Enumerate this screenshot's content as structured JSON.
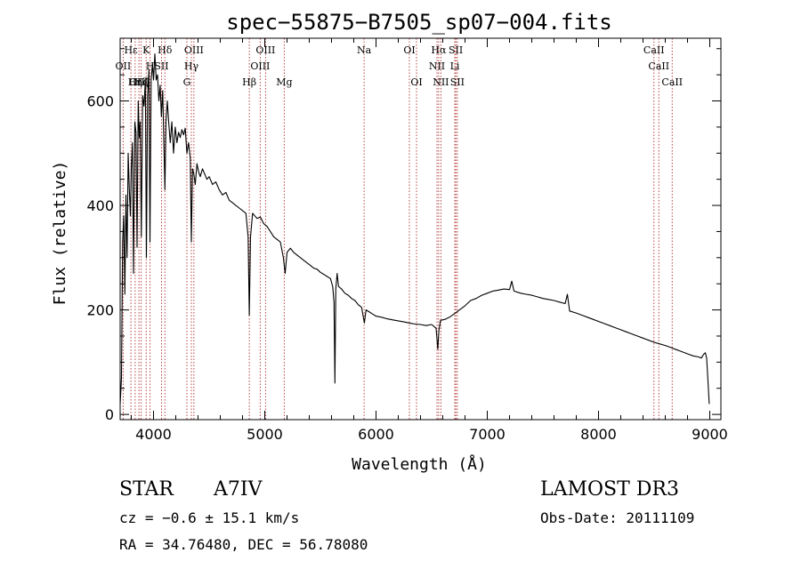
{
  "chart_data": {
    "type": "line",
    "title": "spec−55875−B7505_sp07−004.fits",
    "xlabel": "Wavelength (Å)",
    "ylabel": "Flux (relative)",
    "xlim": [
      3700,
      9100
    ],
    "ylim": [
      -10,
      720
    ],
    "x_ticks": [
      4000,
      5000,
      6000,
      7000,
      8000,
      9000
    ],
    "x_tick_labels": [
      "4000",
      "5000",
      "6000",
      "7000",
      "8000",
      "9000"
    ],
    "y_ticks": [
      0,
      200,
      400,
      600
    ],
    "y_tick_labels": [
      "0",
      "200",
      "400",
      "600"
    ],
    "line_color": "#000000",
    "marker_color": "#b03030",
    "series": [
      {
        "name": "flux",
        "points": [
          [
            3700,
            20
          ],
          [
            3712,
            70
          ],
          [
            3722,
            330
          ],
          [
            3732,
            380
          ],
          [
            3742,
            230
          ],
          [
            3752,
            420
          ],
          [
            3762,
            300
          ],
          [
            3772,
            500
          ],
          [
            3782,
            430
          ],
          [
            3792,
            380
          ],
          [
            3800,
            470
          ],
          [
            3810,
            520
          ],
          [
            3820,
            270
          ],
          [
            3832,
            560
          ],
          [
            3842,
            540
          ],
          [
            3852,
            320
          ],
          [
            3862,
            600
          ],
          [
            3872,
            530
          ],
          [
            3880,
            560
          ],
          [
            3890,
            340
          ],
          [
            3902,
            610
          ],
          [
            3914,
            590
          ],
          [
            3926,
            640
          ],
          [
            3936,
            300
          ],
          [
            3946,
            610
          ],
          [
            3958,
            660
          ],
          [
            3968,
            330
          ],
          [
            3978,
            640
          ],
          [
            3990,
            670
          ],
          [
            4000,
            640
          ],
          [
            4012,
            690
          ],
          [
            4024,
            640
          ],
          [
            4036,
            650
          ],
          [
            4048,
            600
          ],
          [
            4060,
            630
          ],
          [
            4070,
            570
          ],
          [
            4082,
            620
          ],
          [
            4092,
            530
          ],
          [
            4102,
            430
          ],
          [
            4112,
            560
          ],
          [
            4124,
            600
          ],
          [
            4136,
            560
          ],
          [
            4150,
            520
          ],
          [
            4165,
            560
          ],
          [
            4180,
            500
          ],
          [
            4195,
            550
          ],
          [
            4210,
            520
          ],
          [
            4225,
            540
          ],
          [
            4240,
            530
          ],
          [
            4255,
            545
          ],
          [
            4270,
            535
          ],
          [
            4285,
            548
          ],
          [
            4300,
            500
          ],
          [
            4315,
            520
          ],
          [
            4330,
            490
          ],
          [
            4340,
            330
          ],
          [
            4350,
            470
          ],
          [
            4362,
            460
          ],
          [
            4375,
            440
          ],
          [
            4390,
            480
          ],
          [
            4405,
            465
          ],
          [
            4420,
            455
          ],
          [
            4440,
            470
          ],
          [
            4460,
            460
          ],
          [
            4480,
            450
          ],
          [
            4500,
            455
          ],
          [
            4530,
            440
          ],
          [
            4560,
            445
          ],
          [
            4590,
            430
          ],
          [
            4620,
            420
          ],
          [
            4650,
            425
          ],
          [
            4680,
            410
          ],
          [
            4710,
            405
          ],
          [
            4740,
            400
          ],
          [
            4770,
            395
          ],
          [
            4800,
            390
          ],
          [
            4830,
            385
          ],
          [
            4850,
            340
          ],
          [
            4861,
            190
          ],
          [
            4872,
            340
          ],
          [
            4890,
            385
          ],
          [
            4910,
            380
          ],
          [
            4930,
            375
          ],
          [
            4960,
            378
          ],
          [
            4990,
            365
          ],
          [
            5020,
            360
          ],
          [
            5050,
            350
          ],
          [
            5080,
            340
          ],
          [
            5110,
            335
          ],
          [
            5140,
            330
          ],
          [
            5167,
            300
          ],
          [
            5183,
            270
          ],
          [
            5200,
            310
          ],
          [
            5230,
            318
          ],
          [
            5260,
            310
          ],
          [
            5290,
            305
          ],
          [
            5320,
            300
          ],
          [
            5350,
            295
          ],
          [
            5380,
            290
          ],
          [
            5410,
            285
          ],
          [
            5440,
            280
          ],
          [
            5470,
            278
          ],
          [
            5500,
            272
          ],
          [
            5530,
            268
          ],
          [
            5560,
            264
          ],
          [
            5590,
            260
          ],
          [
            5610,
            245
          ],
          [
            5622,
            215
          ],
          [
            5630,
            60
          ],
          [
            5638,
            240
          ],
          [
            5650,
            270
          ],
          [
            5662,
            245
          ],
          [
            5690,
            240
          ],
          [
            5720,
            232
          ],
          [
            5750,
            228
          ],
          [
            5780,
            222
          ],
          [
            5810,
            218
          ],
          [
            5840,
            210
          ],
          [
            5870,
            205
          ],
          [
            5895,
            175
          ],
          [
            5910,
            200
          ],
          [
            5940,
            196
          ],
          [
            5970,
            192
          ],
          [
            6000,
            188
          ],
          [
            6050,
            186
          ],
          [
            6100,
            183
          ],
          [
            6150,
            181
          ],
          [
            6200,
            179
          ],
          [
            6250,
            177
          ],
          [
            6300,
            175
          ],
          [
            6350,
            173
          ],
          [
            6400,
            172
          ],
          [
            6450,
            170
          ],
          [
            6500,
            172
          ],
          [
            6540,
            165
          ],
          [
            6555,
            125
          ],
          [
            6565,
            160
          ],
          [
            6580,
            180
          ],
          [
            6620,
            182
          ],
          [
            6660,
            186
          ],
          [
            6700,
            192
          ],
          [
            6750,
            200
          ],
          [
            6800,
            208
          ],
          [
            6850,
            218
          ],
          [
            6900,
            222
          ],
          [
            6950,
            228
          ],
          [
            7000,
            232
          ],
          [
            7050,
            236
          ],
          [
            7100,
            238
          ],
          [
            7150,
            240
          ],
          [
            7200,
            239
          ],
          [
            7220,
            255
          ],
          [
            7240,
            236
          ],
          [
            7300,
            232
          ],
          [
            7350,
            230
          ],
          [
            7400,
            228
          ],
          [
            7450,
            225
          ],
          [
            7500,
            222
          ],
          [
            7550,
            220
          ],
          [
            7600,
            218
          ],
          [
            7650,
            215
          ],
          [
            7700,
            212
          ],
          [
            7720,
            230
          ],
          [
            7740,
            198
          ],
          [
            7800,
            194
          ],
          [
            7850,
            190
          ],
          [
            7900,
            186
          ],
          [
            7950,
            182
          ],
          [
            8000,
            178
          ],
          [
            8050,
            174
          ],
          [
            8100,
            170
          ],
          [
            8150,
            166
          ],
          [
            8200,
            162
          ],
          [
            8250,
            158
          ],
          [
            8300,
            154
          ],
          [
            8350,
            150
          ],
          [
            8400,
            146
          ],
          [
            8450,
            142
          ],
          [
            8500,
            138
          ],
          [
            8550,
            135
          ],
          [
            8600,
            132
          ],
          [
            8650,
            128
          ],
          [
            8700,
            124
          ],
          [
            8750,
            120
          ],
          [
            8800,
            116
          ],
          [
            8850,
            112
          ],
          [
            8900,
            110
          ],
          [
            8925,
            108
          ],
          [
            8945,
            115
          ],
          [
            8960,
            118
          ],
          [
            8972,
            108
          ],
          [
            8985,
            60
          ],
          [
            8995,
            20
          ]
        ]
      }
    ],
    "line_markers": [
      {
        "label": "Hε",
        "wavelength": 3797,
        "row": 0,
        "dx": 0
      },
      {
        "label": "K",
        "wavelength": 3934,
        "row": 0,
        "dx": 0
      },
      {
        "label": "Hδ",
        "wavelength": 4102,
        "row": 0,
        "dx": 0
      },
      {
        "label": "OIII",
        "wavelength": 4363,
        "row": 0,
        "dx": 0
      },
      {
        "label": "OIII",
        "wavelength": 5007,
        "row": 0,
        "dx": 0
      },
      {
        "label": "OI",
        "wavelength": 6300,
        "row": 0,
        "dx": 0
      },
      {
        "label": "Hα",
        "wavelength": 6563,
        "row": 0,
        "dx": 0
      },
      {
        "label": "SII",
        "wavelength": 6717,
        "row": 0,
        "dx": 0
      },
      {
        "label": "CaII",
        "wavelength": 8498,
        "row": 0,
        "dx": 0
      },
      {
        "label": "OII",
        "wavelength": 3727,
        "row": 1,
        "dx": 0
      },
      {
        "label": "H",
        "wavelength": 3969,
        "row": 1,
        "dx": 0
      },
      {
        "label": "SII",
        "wavelength": 4072,
        "row": 1,
        "dx": 0
      },
      {
        "label": "Hγ",
        "wavelength": 4340,
        "row": 1,
        "dx": 0
      },
      {
        "label": "OIII",
        "wavelength": 4959,
        "row": 1,
        "dx": 0
      },
      {
        "label": "NII",
        "wavelength": 6548,
        "row": 1,
        "dx": 0
      },
      {
        "label": "Li",
        "wavelength": 6708,
        "row": 1,
        "dx": 0
      },
      {
        "label": "CaII",
        "wavelength": 8542,
        "row": 1,
        "dx": 0
      },
      {
        "label": "OIII",
        "wavelength": 3869,
        "row": 2,
        "dx": 0
      },
      {
        "label": "Hζ",
        "wavelength": 3889,
        "row": 2,
        "dx": 0
      },
      {
        "label": "Hη",
        "wavelength": 3835,
        "row": 2,
        "dx": 0
      },
      {
        "label": "G",
        "wavelength": 4300,
        "row": 2,
        "dx": 0
      },
      {
        "label": "Hβ",
        "wavelength": 4861,
        "row": 2,
        "dx": 0
      },
      {
        "label": "Mg",
        "wavelength": 5175,
        "row": 2,
        "dx": 0
      },
      {
        "label": "Na",
        "wavelength": 5893,
        "row": 0,
        "dx": 0
      },
      {
        "label": "OI",
        "wavelength": 6364,
        "row": 2,
        "dx": 0
      },
      {
        "label": "NII",
        "wavelength": 6583,
        "row": 2,
        "dx": 0
      },
      {
        "label": "SII",
        "wavelength": 6731,
        "row": 2,
        "dx": 0
      },
      {
        "label": "CaII",
        "wavelength": 8662,
        "row": 2,
        "dx": 0
      }
    ]
  },
  "info": {
    "object_type": "STAR",
    "subclass": "A7IV",
    "survey": "LAMOST DR3",
    "cz": "cz = −0.6 ± 15.1 km/s",
    "obs_date": "Obs-Date: 20111109",
    "coords": "RA =  34.76480, DEC =  56.78080"
  }
}
